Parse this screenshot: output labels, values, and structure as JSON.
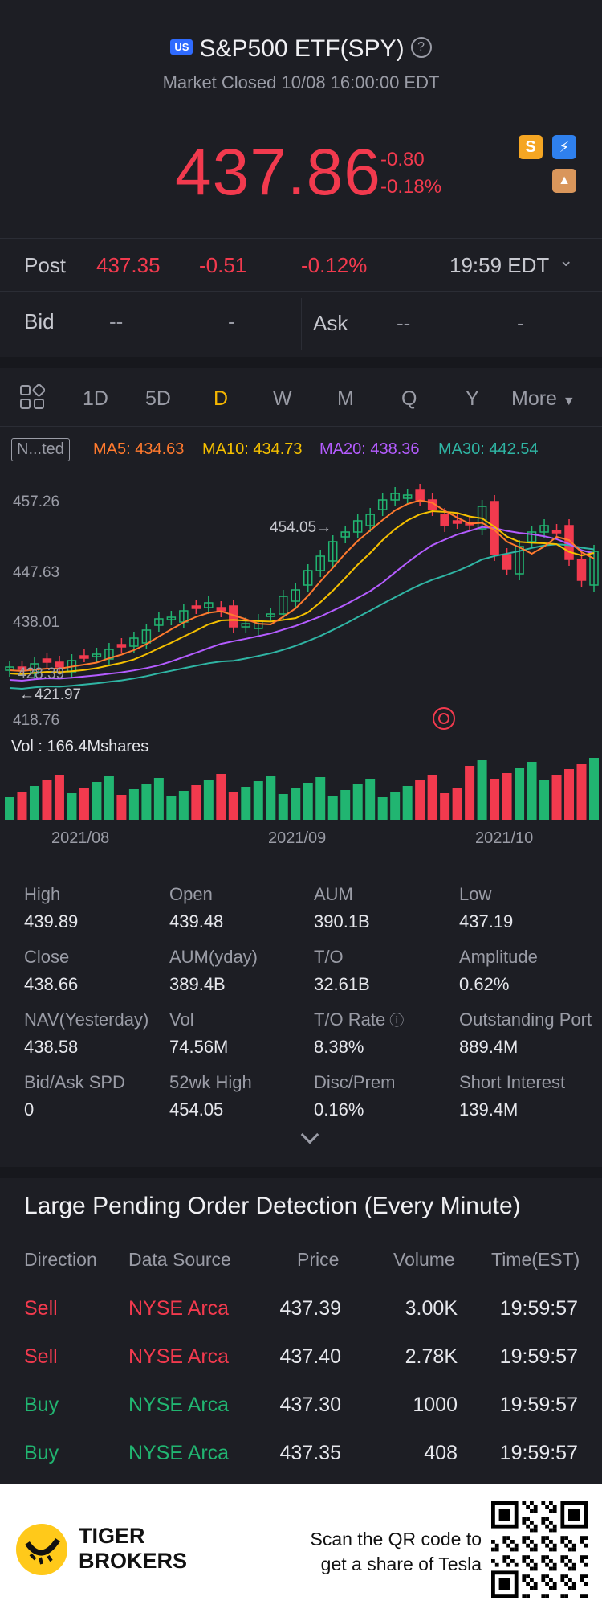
{
  "header": {
    "market_tag": "US",
    "title": "S&P500 ETF(SPY)",
    "status": "Market Closed 10/08 16:00:00 EDT",
    "price": "437.86",
    "change": "-0.80",
    "change_pct": "-0.18%",
    "badges": [
      {
        "icon": "dollar-badge-icon",
        "glyph": "S",
        "color": "#f5a623"
      },
      {
        "icon": "lightning-badge-icon",
        "glyph": "⚡",
        "color": "#2f80ed"
      },
      {
        "icon": "education-badge-icon",
        "glyph": "A",
        "color": "#d9965b"
      }
    ]
  },
  "post": {
    "label": "Post",
    "price": "437.35",
    "change": "-0.51",
    "change_pct": "-0.12%",
    "time": "19:59 EDT"
  },
  "quote": {
    "bid_label": "Bid",
    "bid_price": "--",
    "bid_size": "-",
    "ask_label": "Ask",
    "ask_price": "--",
    "ask_size": "-"
  },
  "tabs": {
    "items": [
      "1D",
      "5D",
      "D",
      "W",
      "M",
      "Q",
      "Y"
    ],
    "active": "D",
    "more": "More"
  },
  "indicators": {
    "button": "N...ted",
    "ma5": "MA5: 434.63",
    "ma10": "MA10: 434.73",
    "ma20": "MA20: 438.36",
    "ma30": "MA30: 442.54",
    "colors": {
      "ma5": "#ff7a2e",
      "ma10": "#f5c000",
      "ma20": "#b45cff",
      "ma30": "#2fb5a4"
    }
  },
  "chart_data": {
    "type": "candlestick",
    "y_ticks": [
      "457.26",
      "447.63",
      "438.01",
      "428.39",
      "418.76"
    ],
    "high_marker": "454.05",
    "low_marker": "421.97",
    "x_labels": [
      "2021/08",
      "2021/09",
      "2021/10"
    ],
    "volume_label": "Vol  : 166.4Mshares",
    "ylim": [
      418.76,
      457.26
    ]
  },
  "stats": [
    {
      "label": "High",
      "value": "439.89"
    },
    {
      "label": "Open",
      "value": "439.48"
    },
    {
      "label": "AUM",
      "value": "390.1B"
    },
    {
      "label": "Low",
      "value": "437.19"
    },
    {
      "label": "Close",
      "value": "438.66"
    },
    {
      "label": "AUM(yday)",
      "value": "389.4B"
    },
    {
      "label": "T/O",
      "value": "32.61B"
    },
    {
      "label": "Amplitude",
      "value": "0.62%"
    },
    {
      "label": "NAV(Yesterday)",
      "value": "438.58"
    },
    {
      "label": "Vol",
      "value": "74.56M"
    },
    {
      "label": "T/O Rate",
      "value": "8.38%"
    },
    {
      "label": "Outstanding Port",
      "value": "889.4M"
    },
    {
      "label": "Bid/Ask SPD",
      "value": "0"
    },
    {
      "label": "52wk High",
      "value": "454.05"
    },
    {
      "label": "Disc/Prem",
      "value": "0.16%"
    },
    {
      "label": "Short Interest",
      "value": "139.4M"
    }
  ],
  "orders": {
    "title": "Large Pending Order Detection (Every Minute)",
    "headers": [
      "Direction",
      "Data Source",
      "Price",
      "Volume",
      "Time(EST)"
    ],
    "rows": [
      {
        "direction": "Sell",
        "source": "NYSE Arca",
        "price": "437.39",
        "volume": "3.00K",
        "time": "19:59:57"
      },
      {
        "direction": "Sell",
        "source": "NYSE Arca",
        "price": "437.40",
        "volume": "2.78K",
        "time": "19:59:57"
      },
      {
        "direction": "Buy",
        "source": "NYSE Arca",
        "price": "437.30",
        "volume": "1000",
        "time": "19:59:57"
      },
      {
        "direction": "Buy",
        "source": "NYSE Arca",
        "price": "437.35",
        "volume": "408",
        "time": "19:59:57"
      }
    ]
  },
  "footer": {
    "brand_line1": "TIGER",
    "brand_line2": "BROKERS",
    "scan_line1": "Scan the QR code to",
    "scan_line2": "get a share of Tesla"
  }
}
